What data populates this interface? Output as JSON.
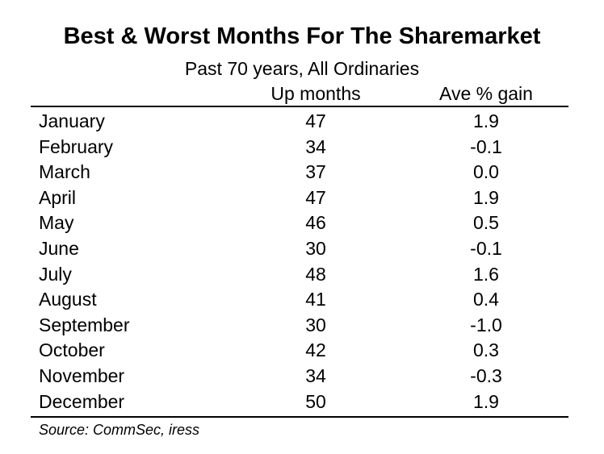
{
  "chart_data": {
    "type": "table",
    "title": "Best & Worst Months For The Sharemarket",
    "subtitle": "Past 70 years, All Ordinaries",
    "columns": [
      "",
      "Up months",
      "Ave % gain"
    ],
    "rows": [
      {
        "month": "January",
        "up_months": "47",
        "ave_gain": "1.9"
      },
      {
        "month": "February",
        "up_months": "34",
        "ave_gain": "-0.1"
      },
      {
        "month": "March",
        "up_months": "37",
        "ave_gain": "0.0"
      },
      {
        "month": "April",
        "up_months": "47",
        "ave_gain": "1.9"
      },
      {
        "month": "May",
        "up_months": "46",
        "ave_gain": "0.5"
      },
      {
        "month": "June",
        "up_months": "30",
        "ave_gain": "-0.1"
      },
      {
        "month": "July",
        "up_months": "48",
        "ave_gain": "1.6"
      },
      {
        "month": "August",
        "up_months": "41",
        "ave_gain": "0.4"
      },
      {
        "month": "September",
        "up_months": "30",
        "ave_gain": "-1.0"
      },
      {
        "month": "October",
        "up_months": "42",
        "ave_gain": "0.3"
      },
      {
        "month": "November",
        "up_months": "34",
        "ave_gain": "-0.3"
      },
      {
        "month": "December",
        "up_months": "50",
        "ave_gain": "1.9"
      }
    ],
    "source": "Source: CommSec, iress"
  }
}
